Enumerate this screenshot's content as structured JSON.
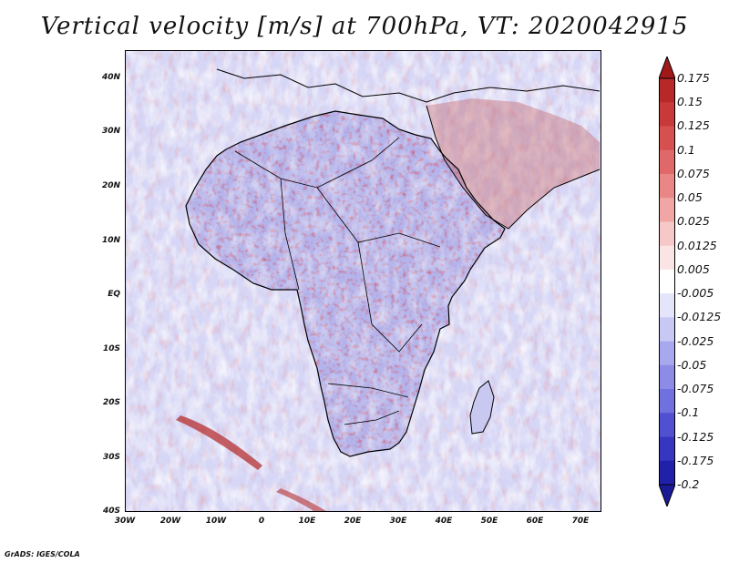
{
  "title": "Vertical velocity [m/s] at 700hPa, VT: 2020042915",
  "footer": "GrADS: IGES/COLA",
  "map": {
    "lon_range": [
      -30,
      75
    ],
    "lat_range": [
      -40,
      45
    ],
    "lat_labels": [
      "40N",
      "30N",
      "20N",
      "10N",
      "EQ",
      "10S",
      "20S",
      "30S",
      "40S"
    ],
    "lon_labels": [
      "30W",
      "20W",
      "10W",
      "0",
      "10E",
      "20E",
      "30E",
      "40E",
      "50E",
      "60E",
      "70E"
    ],
    "variable": "Vertical velocity",
    "units": "m/s",
    "level": "700hPa",
    "valid_time": "2020042915"
  },
  "colorbar": {
    "levels": [
      "0.175",
      "0.15",
      "0.125",
      "0.1",
      "0.075",
      "0.05",
      "0.025",
      "0.0125",
      "0.005",
      "-0.005",
      "-0.0125",
      "-0.025",
      "-0.05",
      "-0.075",
      "-0.1",
      "-0.125",
      "-0.175",
      "-0.2"
    ],
    "colors": [
      "#a01818",
      "#b72828",
      "#c83a3a",
      "#d65050",
      "#e06868",
      "#e98686",
      "#f1a6a6",
      "#f7c8c8",
      "#fbe4e4",
      "#ffffff",
      "#e4e4fb",
      "#c8c8f5",
      "#a8a8ee",
      "#8c8ce6",
      "#7070de",
      "#5050d0",
      "#3636c0",
      "#2020a8",
      "#1a1a96"
    ]
  }
}
